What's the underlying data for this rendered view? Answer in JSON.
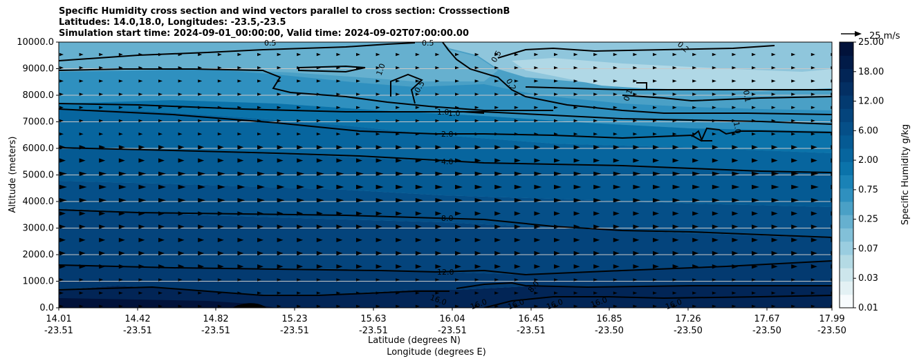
{
  "chart_data": {
    "type": "contour",
    "title_lines": [
      "Specific Humidity cross section and wind vectors parallel to cross section: CrosssectionB",
      "Latitudes: 14.0,18.0, Longitudes: -23.5,-23.5",
      "Simulation start time: 2024-09-01_00:00:00, Valid time: 2024-09-02T07:00:00.00"
    ],
    "xlabel_lines": [
      "Latitude (degrees N)",
      "Longitude (degrees E)"
    ],
    "ylabel": "Altitude (meters)",
    "ylim": [
      0,
      10000
    ],
    "yticks": [
      0,
      1000,
      2000,
      3000,
      4000,
      5000,
      6000,
      7000,
      8000,
      9000,
      10000
    ],
    "ytick_labels": [
      "0.0",
      "1000.0",
      "2000.0",
      "3000.0",
      "4000.0",
      "5000.0",
      "6000.0",
      "7000.0",
      "8000.0",
      "9000.0",
      "10000.0"
    ],
    "x_ticks": [
      {
        "lat": "14.01",
        "lon": "-23.51"
      },
      {
        "lat": "14.42",
        "lon": "-23.51"
      },
      {
        "lat": "14.82",
        "lon": "-23.51"
      },
      {
        "lat": "15.23",
        "lon": "-23.51"
      },
      {
        "lat": "15.63",
        "lon": "-23.51"
      },
      {
        "lat": "16.04",
        "lon": "-23.51"
      },
      {
        "lat": "16.45",
        "lon": "-23.51"
      },
      {
        "lat": "16.85",
        "lon": "-23.50"
      },
      {
        "lat": "17.26",
        "lon": "-23.50"
      },
      {
        "lat": "17.67",
        "lon": "-23.50"
      },
      {
        "lat": "17.99",
        "lon": "-23.50"
      }
    ],
    "colorbar": {
      "label": "Specific Humidity g/kg",
      "tick_labels": [
        "0.01",
        "0.03",
        "0.07",
        "0.25",
        "0.75",
        "2.00",
        "6.00",
        "12.00",
        "18.00",
        "25.00"
      ],
      "colors": [
        "#f7fbfd",
        "#e3f1f4",
        "#cde6ec",
        "#b4dae4",
        "#9acde0",
        "#82c0d8",
        "#66b0cf",
        "#4aa0c6",
        "#2f90bf",
        "#1a82b6",
        "#0b73aa",
        "#07659e",
        "#055a93",
        "#054f88",
        "#04447c",
        "#033a70",
        "#032f63",
        "#022556",
        "#011b48",
        "#01123a"
      ]
    },
    "quiver_key": "25 m/s",
    "contour_labels": [
      "0.5",
      "0.5",
      "1.0",
      "0.5",
      "0.5",
      "0.2",
      "0.2",
      "0.1",
      "0.1",
      "1.0",
      "1.0",
      "1.0",
      "2.0",
      "4.0",
      "8.0",
      "12.0",
      "16.0",
      "16.0",
      "16.0",
      "16.0",
      "16.0",
      "16.0",
      "8.0"
    ]
  }
}
